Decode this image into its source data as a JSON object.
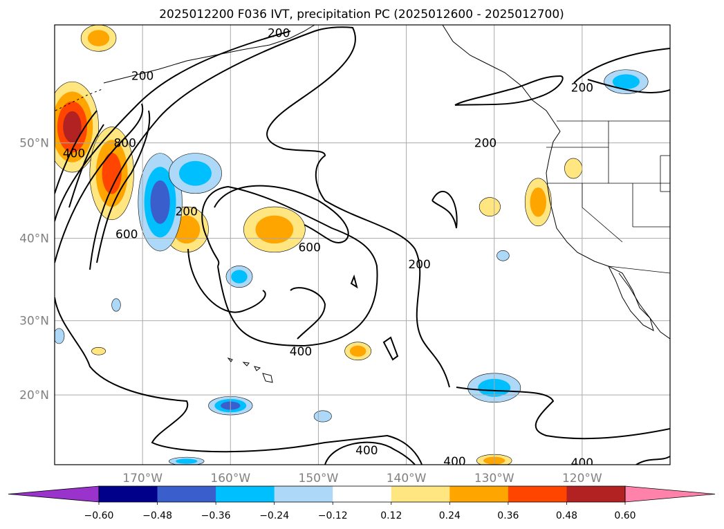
{
  "figure": {
    "title": "2025012200 F036 IVT, precipitation PC (2025012600 - 2025012700)"
  },
  "map": {
    "projection": "Mercator",
    "lon_range": [
      -180,
      -110
    ],
    "lat_range": [
      10,
      60
    ],
    "lat_ticks": [
      {
        "value": 20,
        "label": "20°N"
      },
      {
        "value": 30,
        "label": "30°N"
      },
      {
        "value": 40,
        "label": "40°N"
      },
      {
        "value": 50,
        "label": "50°N"
      }
    ],
    "lon_ticks": [
      {
        "value": -170,
        "label": "170°W"
      },
      {
        "value": -160,
        "label": "160°W"
      },
      {
        "value": -150,
        "label": "150°W"
      },
      {
        "value": -140,
        "label": "140°W"
      },
      {
        "value": -130,
        "label": "130°W"
      },
      {
        "value": -120,
        "label": "120°W"
      }
    ],
    "grid": true,
    "ivt_contour_labels": [
      {
        "text": "200",
        "lon": -170.0,
        "lat": 56.0
      },
      {
        "text": "200",
        "lon": -154.5,
        "lat": 59.4
      },
      {
        "text": "200",
        "lon": -120.0,
        "lat": 55.0
      },
      {
        "text": "200",
        "lon": -131.0,
        "lat": 50.0
      },
      {
        "text": "200",
        "lon": -165.0,
        "lat": 43.0
      },
      {
        "text": "200",
        "lon": -138.5,
        "lat": 37.0
      },
      {
        "text": "400",
        "lon": -177.8,
        "lat": 49.0
      },
      {
        "text": "800",
        "lon": -172.0,
        "lat": 50.0
      },
      {
        "text": "600",
        "lon": -171.8,
        "lat": 40.5
      },
      {
        "text": "600",
        "lon": -151.0,
        "lat": 39.0
      },
      {
        "text": "400",
        "lon": -152.0,
        "lat": 26.0
      },
      {
        "text": "400",
        "lon": -144.5,
        "lat": 12.1
      },
      {
        "text": "400",
        "lon": -134.5,
        "lat": 10.5
      },
      {
        "text": "400",
        "lon": -120.0,
        "lat": 10.3
      }
    ],
    "precip_pc_anomalies": [
      {
        "sign": "pos",
        "level": 0.48,
        "lon": -178.0,
        "lat": 51.5,
        "rx": 3.0,
        "ry": 4.0
      },
      {
        "sign": "pos",
        "level": 0.36,
        "lon": -173.5,
        "lat": 47.0,
        "rx": 2.5,
        "ry": 4.5
      },
      {
        "sign": "pos",
        "level": 0.24,
        "lon": -155.0,
        "lat": 41.0,
        "rx": 3.5,
        "ry": 2.5
      },
      {
        "sign": "pos",
        "level": 0.24,
        "lon": -165.0,
        "lat": 41.0,
        "rx": 2.5,
        "ry": 2.5
      },
      {
        "sign": "pos",
        "level": 0.24,
        "lon": -125.0,
        "lat": 44.0,
        "rx": 1.5,
        "ry": 2.5
      },
      {
        "sign": "pos",
        "level": 0.24,
        "lon": -145.5,
        "lat": 26.0,
        "rx": 1.5,
        "ry": 1.2
      },
      {
        "sign": "pos",
        "level": 0.24,
        "lon": -130.0,
        "lat": 10.6,
        "rx": 2.0,
        "ry": 0.9
      },
      {
        "sign": "pos",
        "level": 0.24,
        "lon": -175.0,
        "lat": 59.0,
        "rx": 2.0,
        "ry": 1.0
      },
      {
        "sign": "pos",
        "level": 0.12,
        "lon": -130.5,
        "lat": 43.5,
        "rx": 1.2,
        "ry": 1.0
      },
      {
        "sign": "pos",
        "level": 0.12,
        "lon": -121.0,
        "lat": 47.5,
        "rx": 1.0,
        "ry": 1.0
      },
      {
        "sign": "pos",
        "level": 0.12,
        "lon": -175.0,
        "lat": 26.0,
        "rx": 0.8,
        "ry": 0.5
      },
      {
        "sign": "neg",
        "level": -0.48,
        "lon": -168.0,
        "lat": 44.0,
        "rx": 2.5,
        "ry": 5.0
      },
      {
        "sign": "neg",
        "level": -0.36,
        "lon": -164.0,
        "lat": 47.0,
        "rx": 3.0,
        "ry": 2.0
      },
      {
        "sign": "neg",
        "level": -0.36,
        "lon": -159.0,
        "lat": 35.5,
        "rx": 1.5,
        "ry": 1.3
      },
      {
        "sign": "neg",
        "level": -0.36,
        "lon": -130.0,
        "lat": 21.0,
        "rx": 3.0,
        "ry": 2.0
      },
      {
        "sign": "neg",
        "level": -0.48,
        "lon": -160.0,
        "lat": 18.5,
        "rx": 2.5,
        "ry": 1.3
      },
      {
        "sign": "neg",
        "level": -0.36,
        "lon": -115.0,
        "lat": 55.5,
        "rx": 2.5,
        "ry": 1.0
      },
      {
        "sign": "neg",
        "level": -0.36,
        "lon": -165.0,
        "lat": 10.5,
        "rx": 2.0,
        "ry": 0.6
      },
      {
        "sign": "neg",
        "level": -0.24,
        "lon": -149.5,
        "lat": 17.0,
        "rx": 1.0,
        "ry": 0.8
      },
      {
        "sign": "neg",
        "level": -0.24,
        "lon": -179.5,
        "lat": 28.0,
        "rx": 0.6,
        "ry": 1.0
      },
      {
        "sign": "neg",
        "level": -0.24,
        "lon": -129.0,
        "lat": 38.0,
        "rx": 0.7,
        "ry": 0.6
      },
      {
        "sign": "neg",
        "level": -0.24,
        "lon": -173.0,
        "lat": 32.0,
        "rx": 0.5,
        "ry": 0.8
      }
    ],
    "colors": {
      "neg_extend": "#9933cc",
      "-0.60": "#00008b",
      "-0.48": "#3a5fcd",
      "-0.36": "#00bfff",
      "-0.24": "#add8f7",
      "neutral": "#ffffff",
      "0.12": "#ffe680",
      "0.24": "#ffa500",
      "0.36": "#ff4500",
      "0.48": "#b22222",
      "pos_extend": "#ff82ab",
      "contour": "#000000",
      "grid": "#a9a9a9"
    }
  },
  "colorbar": {
    "ticks": [
      "−0.60",
      "−0.48",
      "−0.36",
      "−0.24",
      "−0.12",
      "0.12",
      "0.24",
      "0.36",
      "0.48",
      "0.60"
    ],
    "colors": [
      "#00008b",
      "#3a5fcd",
      "#00bfff",
      "#add8f7",
      "#ffffff",
      "#ffe680",
      "#ffa500",
      "#ff4500",
      "#b22222"
    ],
    "extend_low": "#9933cc",
    "extend_high": "#ff82ab",
    "extend": "both"
  }
}
